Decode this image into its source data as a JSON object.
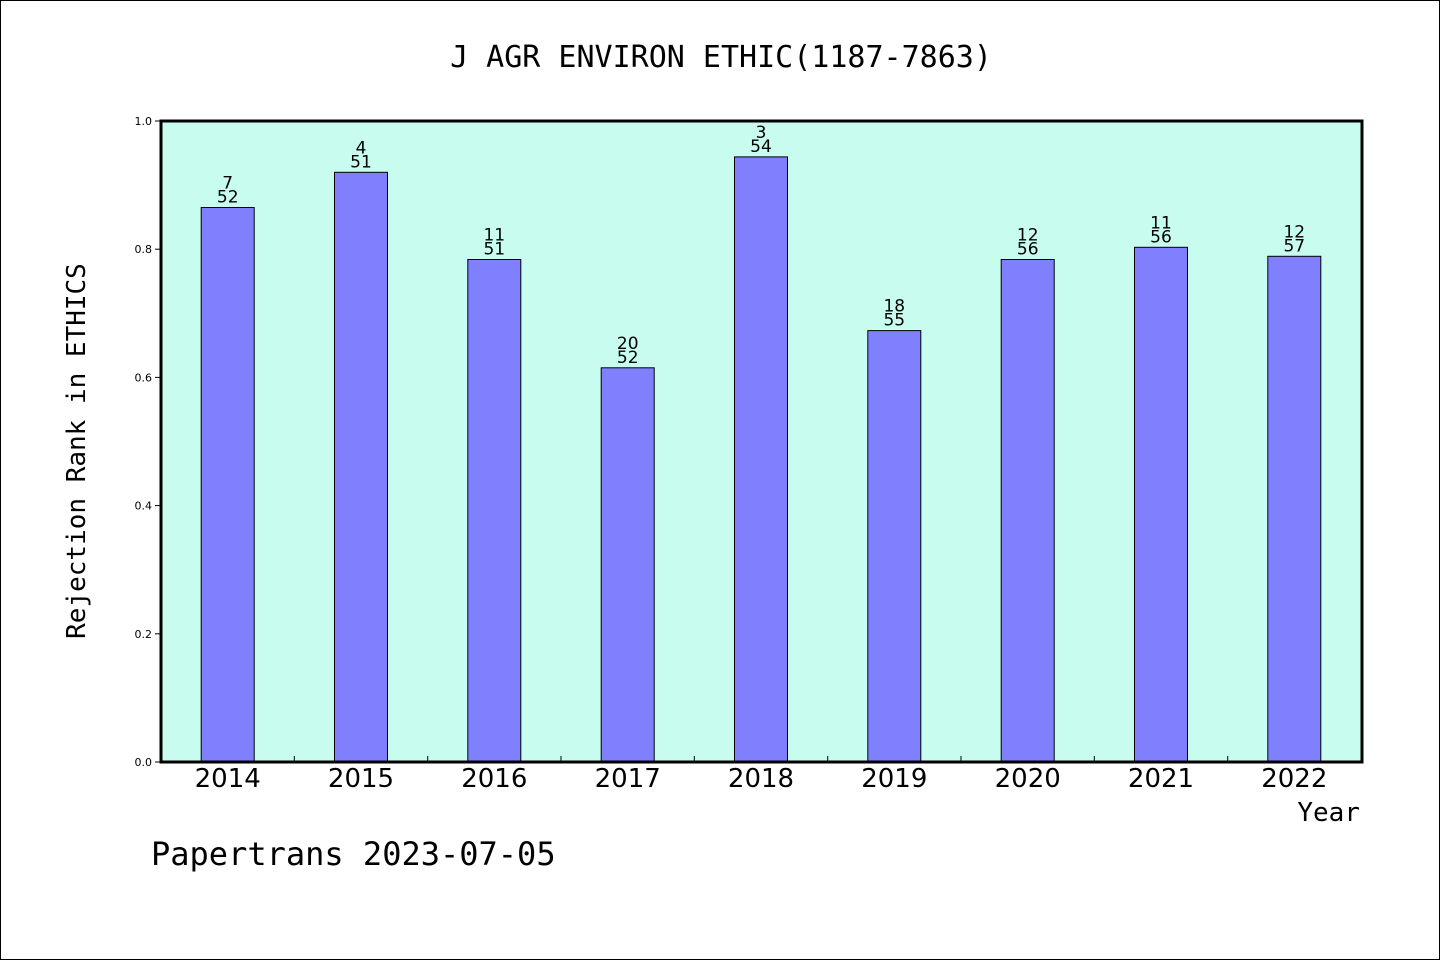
{
  "chart_data": {
    "type": "bar",
    "title": "J AGR ENVIRON ETHIC(1187-7863)",
    "xlabel": "Year",
    "ylabel": "Rejection Rank in ETHICS",
    "categories": [
      "2014",
      "2015",
      "2016",
      "2017",
      "2018",
      "2019",
      "2020",
      "2021",
      "2022"
    ],
    "values": [
      0.865,
      0.92,
      0.784,
      0.615,
      0.944,
      0.673,
      0.784,
      0.803,
      0.789
    ],
    "rank": [
      "7",
      "4",
      "11",
      "20",
      "3",
      "18",
      "12",
      "11",
      "12"
    ],
    "total": [
      "52",
      "51",
      "51",
      "52",
      "54",
      "55",
      "56",
      "56",
      "57"
    ],
    "ylim": [
      0,
      1.0
    ],
    "yticks": [
      "0.0",
      "0.2",
      "0.4",
      "0.6",
      "0.8",
      "1.0"
    ],
    "grid": false,
    "colors": {
      "plot_background": "#c8fcee",
      "bar_fill": "#8080ff",
      "bar_stroke": "#000000"
    }
  },
  "footer": "Papertrans 2023-07-05"
}
